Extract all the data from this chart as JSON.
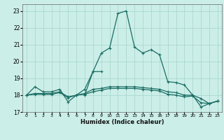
{
  "xlabel": "Humidex (Indice chaleur)",
  "bg_color": "#cceee8",
  "grid_color": "#aad8d0",
  "line_color": "#1a6e64",
  "xlim": [
    -0.5,
    23.5
  ],
  "ylim": [
    17.0,
    23.4
  ],
  "yticks": [
    17,
    18,
    19,
    20,
    21,
    22,
    23
  ],
  "xticks": [
    0,
    1,
    2,
    3,
    4,
    5,
    6,
    7,
    8,
    9,
    10,
    11,
    12,
    13,
    14,
    15,
    16,
    17,
    18,
    19,
    20,
    21,
    22,
    23
  ],
  "lines": [
    {
      "x": [
        0,
        1,
        2,
        3,
        4,
        5,
        6,
        7,
        8,
        9,
        10,
        11,
        12,
        13,
        14,
        15,
        16,
        17,
        18,
        19,
        20,
        21,
        22,
        23
      ],
      "y": [
        18.0,
        18.5,
        18.2,
        18.2,
        18.35,
        17.6,
        18.0,
        18.35,
        19.4,
        20.5,
        20.8,
        22.85,
        23.0,
        20.85,
        20.5,
        20.7,
        20.4,
        18.8,
        18.75,
        18.6,
        18.0,
        17.3,
        17.5,
        17.65
      ]
    },
    {
      "x": [
        7,
        8,
        9
      ],
      "y": [
        18.0,
        19.4,
        19.4
      ]
    },
    {
      "x": [
        0,
        1,
        2,
        3,
        4,
        5,
        6,
        7,
        8,
        9,
        10,
        11,
        12,
        13,
        14,
        15,
        16,
        17,
        18,
        19,
        20,
        21,
        22,
        23
      ],
      "y": [
        18.0,
        18.1,
        18.1,
        18.1,
        18.2,
        17.9,
        18.0,
        18.1,
        18.35,
        18.4,
        18.5,
        18.5,
        18.5,
        18.5,
        18.45,
        18.4,
        18.35,
        18.2,
        18.15,
        18.0,
        18.0,
        17.8,
        17.5,
        17.65
      ]
    },
    {
      "x": [
        0,
        1,
        2,
        3,
        4,
        5,
        6,
        7,
        8,
        9,
        10,
        11,
        12,
        13,
        14,
        15,
        16,
        17,
        18,
        19,
        20,
        21,
        22,
        23
      ],
      "y": [
        18.0,
        18.05,
        18.05,
        18.05,
        18.15,
        17.85,
        18.0,
        18.05,
        18.2,
        18.3,
        18.4,
        18.4,
        18.4,
        18.4,
        18.35,
        18.3,
        18.25,
        18.05,
        18.0,
        17.9,
        17.95,
        17.55,
        17.5,
        17.65
      ]
    }
  ]
}
